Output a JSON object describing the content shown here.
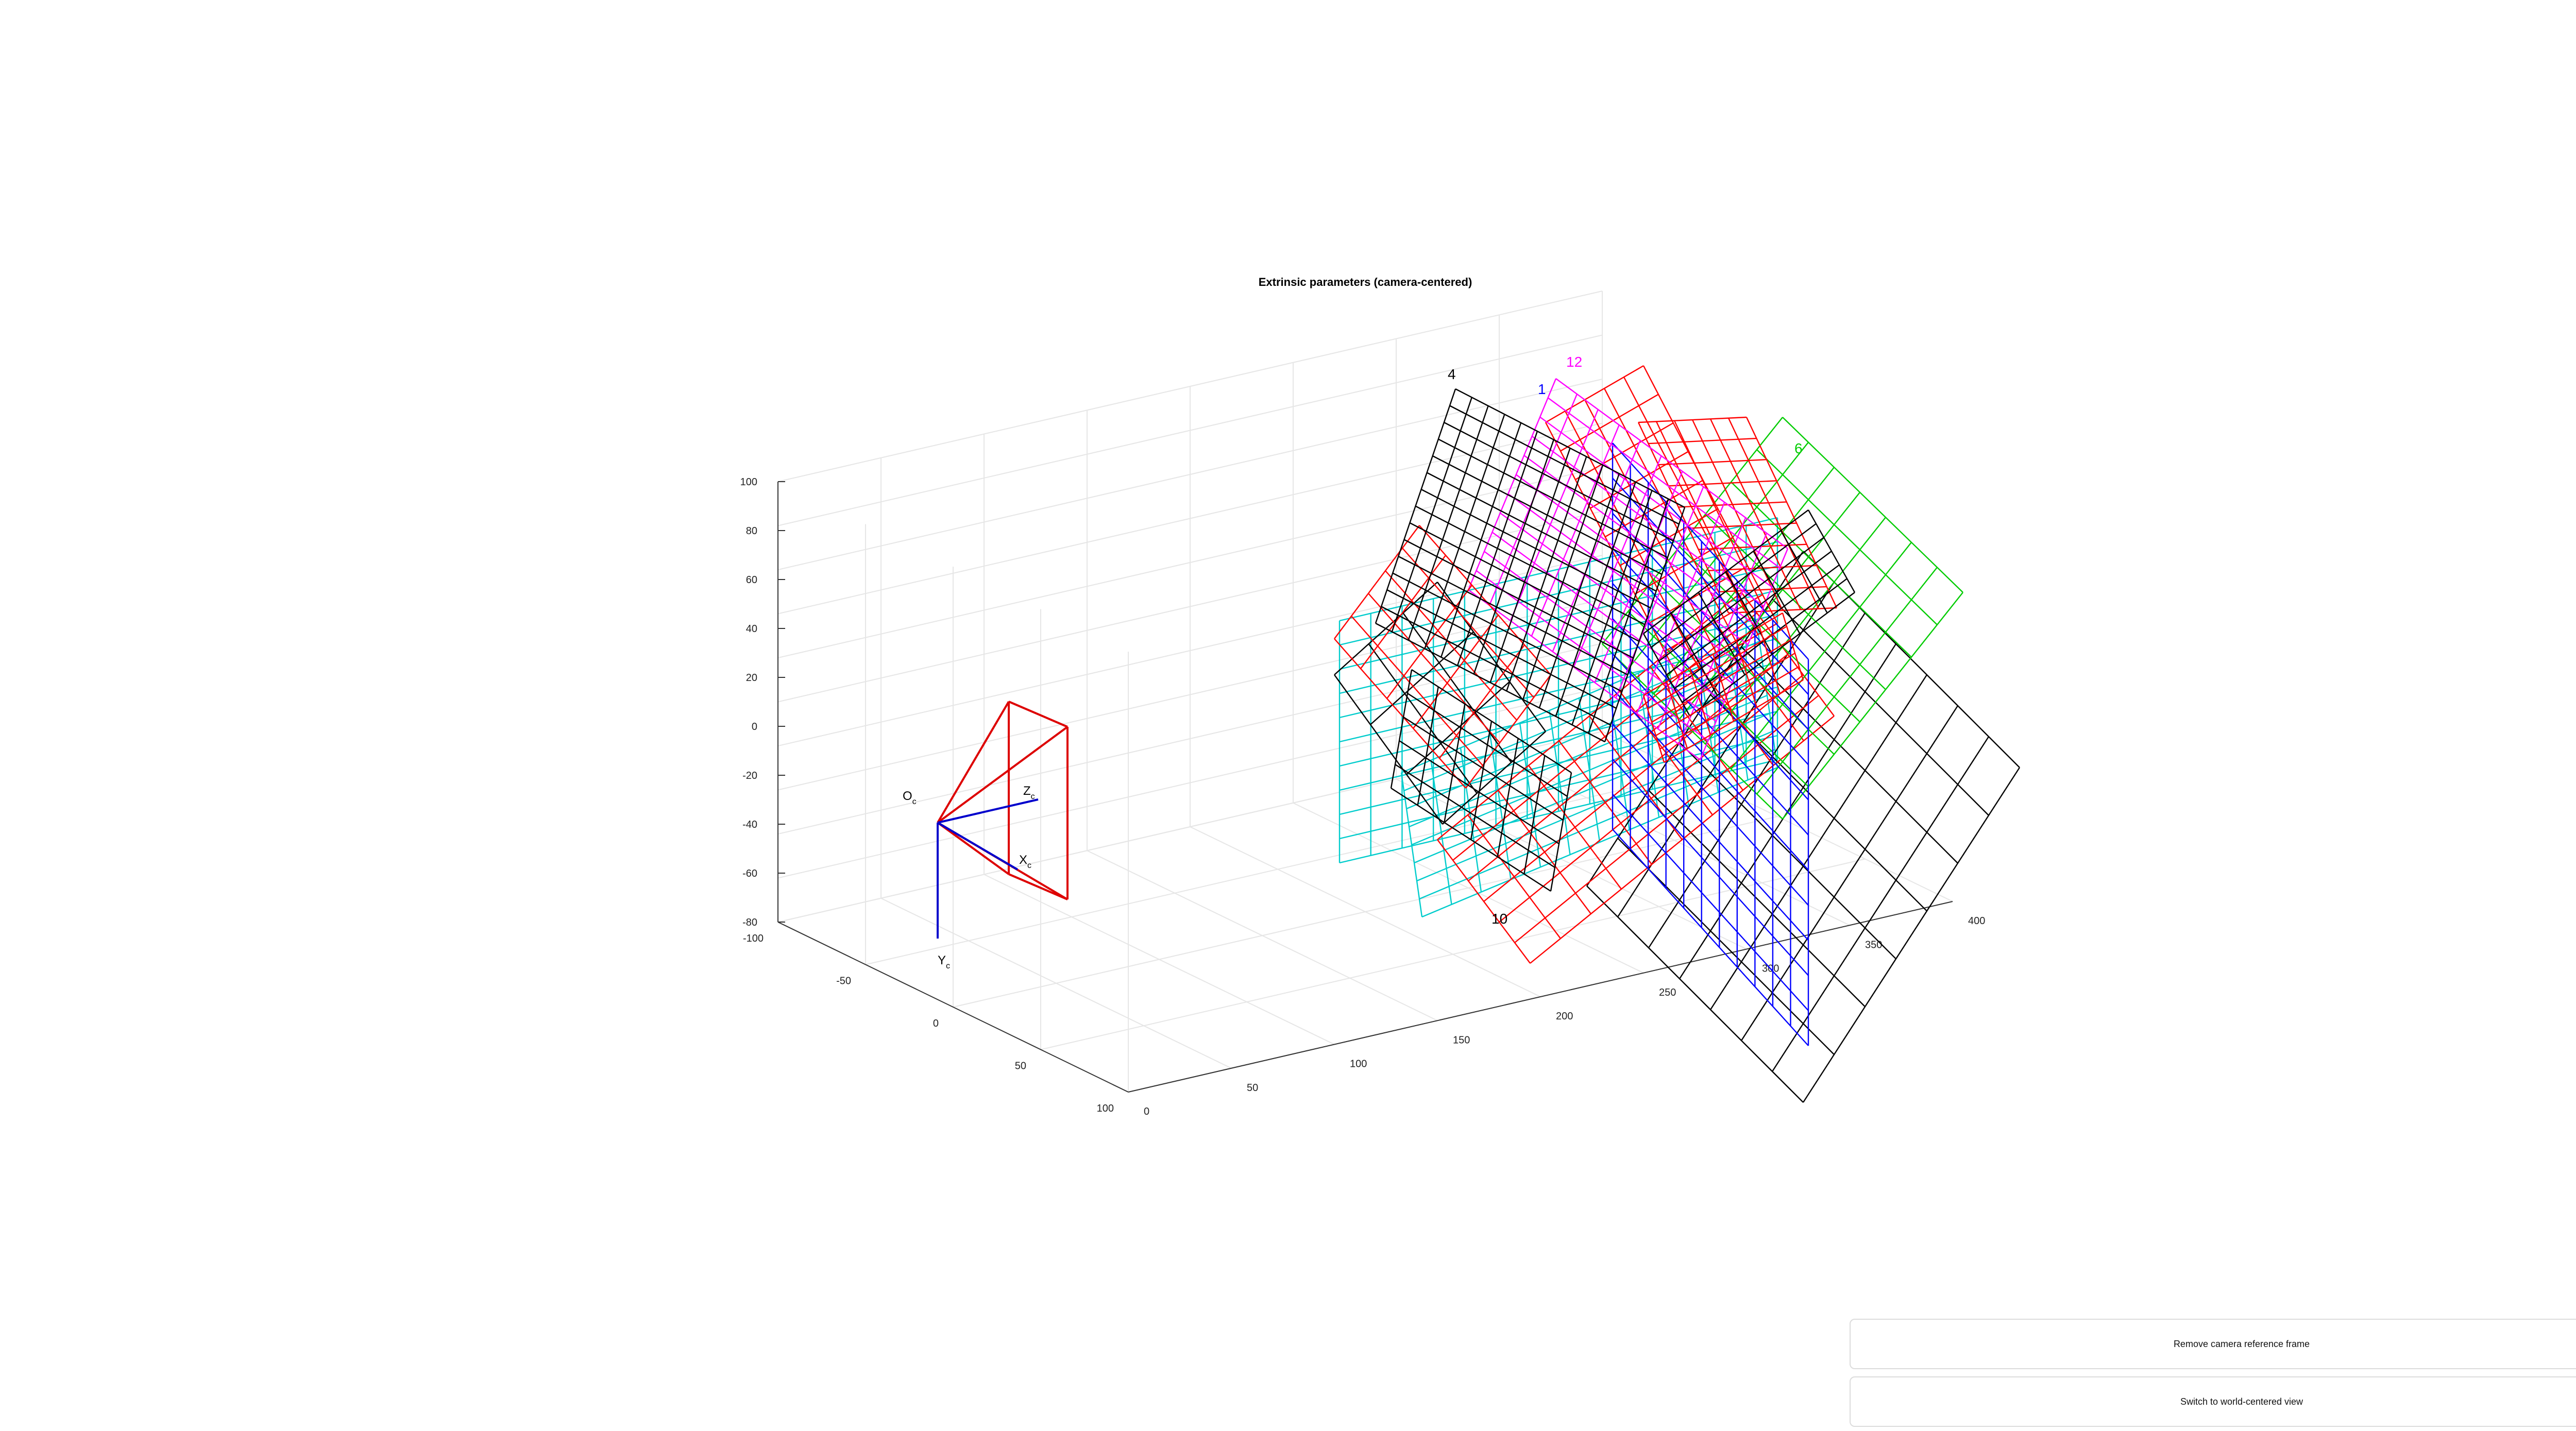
{
  "chart_data": {
    "type": "3d-line",
    "title": "Extrinsic parameters (camera-centered)",
    "xlabel": "",
    "ylabel": "",
    "zlabel": "",
    "grid": true,
    "x_ticks": [
      "-100",
      "-50",
      "0",
      "50",
      "100"
    ],
    "depth_ticks": [
      "0",
      "50",
      "100",
      "150",
      "200",
      "250",
      "300",
      "350",
      "400"
    ],
    "vertical_ticks": [
      "100",
      "80",
      "60",
      "40",
      "20",
      "0",
      "-20",
      "-40",
      "-60",
      "-80"
    ],
    "camera_labels": {
      "origin": "O",
      "origin_sub": "c",
      "x": "X",
      "x_sub": "c",
      "y": "Y",
      "y_sub": "c",
      "z": "Z",
      "z_sub": "c"
    },
    "planes": [
      {
        "label": "4",
        "color": "#000000"
      },
      {
        "label": "1",
        "color": "#0000ff"
      },
      {
        "label": "12",
        "color": "#ff00ff"
      },
      {
        "label": "6",
        "color": "#00cc00"
      },
      {
        "label": "10",
        "color": "#000000"
      }
    ],
    "unlabeled_plane_colors": [
      "#ff0000",
      "#00cccc"
    ],
    "camera_color": "#dd0000",
    "axis_color": "#0000cc"
  },
  "buttons": {
    "remove_camera": "Remove camera reference frame",
    "switch_view": "Switch to world-centered view"
  }
}
